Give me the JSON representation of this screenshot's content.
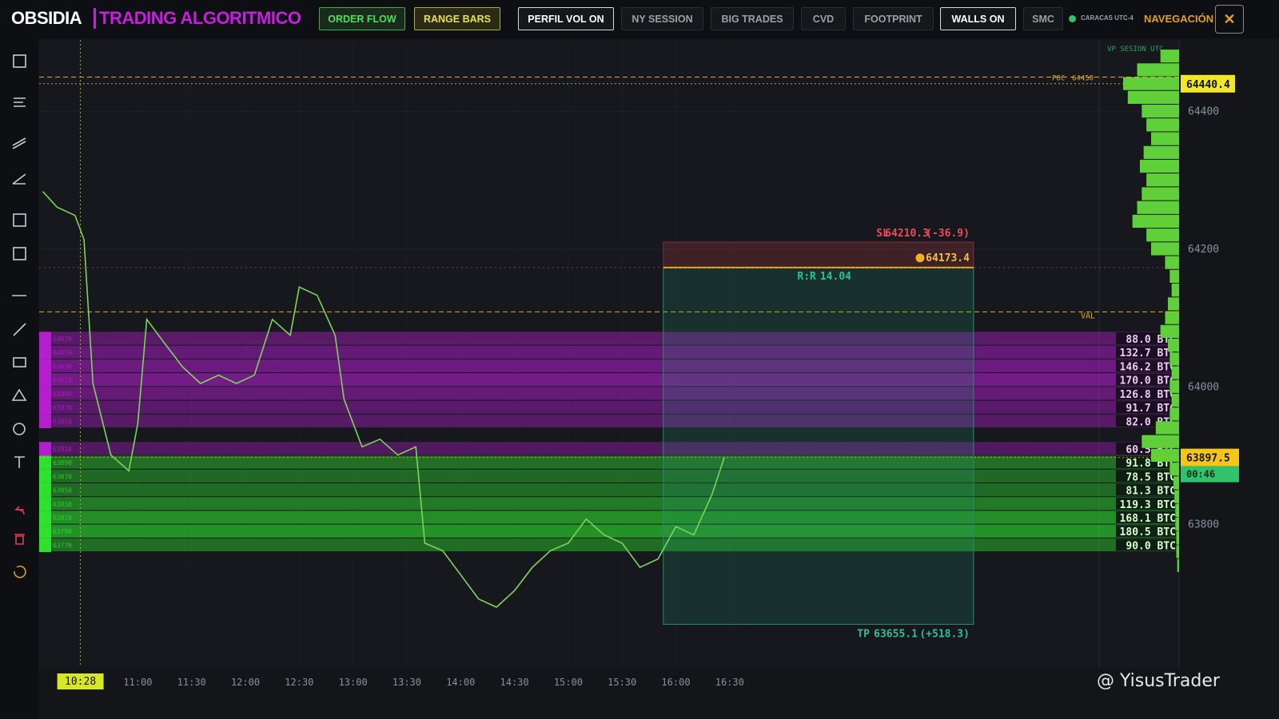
{
  "header": {
    "logo": "OBSIDIA",
    "subtitle": "TRADING ALGORITMICO",
    "buttons": [
      "ORDER FLOW",
      "RANGE BARS",
      "PERFIL VOL ON",
      "NY SESSION",
      "BIG TRADES",
      "CVD",
      "FOOTPRINT",
      "WALLS ON",
      "SMC"
    ],
    "clock": "CARACAS UTC-4",
    "nav": "NAVEGACIÓN"
  },
  "watermark": "@ YisusTrader",
  "chart_data": {
    "type": "line",
    "color": "#7fd35a",
    "x": [
      "10:07",
      "10:15",
      "10:25",
      "10:30",
      "10:35",
      "10:45",
      "10:55",
      "11:00",
      "11:05",
      "11:15",
      "11:25",
      "11:35",
      "11:45",
      "11:55",
      "12:05",
      "12:15",
      "12:25",
      "12:30",
      "12:40",
      "12:50",
      "12:55",
      "13:05",
      "13:15",
      "13:25",
      "13:35",
      "13:40",
      "13:50",
      "14:00",
      "14:10",
      "14:20",
      "14:30",
      "14:40",
      "14:50",
      "15:00",
      "15:10",
      "15:20",
      "15:30",
      "15:40",
      "15:50",
      "16:00",
      "16:10",
      "16:20",
      "16:27"
    ],
    "values": [
      64284,
      64261,
      64249,
      64214,
      64005,
      63901,
      63878,
      63947,
      64098,
      64063,
      64029,
      64005,
      64017,
      64005,
      64017,
      64098,
      64075,
      64145,
      64133,
      64075,
      63982,
      63913,
      63924,
      63901,
      63913,
      63773,
      63762,
      63727,
      63692,
      63680,
      63704,
      63738,
      63762,
      63773,
      63808,
      63785,
      63773,
      63738,
      63750,
      63797,
      63785,
      63843,
      63897.5
    ],
    "xlim": [
      "10:05",
      "19:56"
    ],
    "ylim": [
      63593,
      64504
    ],
    "xticks": [
      "11:00",
      "11:30",
      "12:00",
      "12:30",
      "13:00",
      "13:30",
      "14:00",
      "14:30",
      "15:00",
      "15:30",
      "16:00",
      "16:30"
    ],
    "yticks": [
      64400,
      64200,
      64000,
      63800
    ],
    "crosshair": {
      "time": "10:28",
      "price": 64440.4
    },
    "last_price": 63897.5,
    "countdown": "00:46",
    "levels": {
      "poc_label": "POC",
      "poc": 64450,
      "val_label": "VAL",
      "val": 64109
    },
    "trade": {
      "start": "15:53",
      "end": "18:46",
      "entry": 64173.4,
      "sl_label": "SL",
      "sl": 64210.3,
      "sl_diff": {
        "value": -36.9,
        "label": "(-36.9)"
      },
      "tp_label": "TP",
      "tp": 63655.1,
      "tp_diff": {
        "value": 518.3,
        "label": "(+518.3)"
      },
      "rr_label": "R:R",
      "rr": 14.04
    },
    "walls": [
      {
        "price": 64070,
        "size": 88.0,
        "label": "88.0 BTC",
        "side": "sell"
      },
      {
        "price": 64050,
        "size": 132.7,
        "label": "132.7 BTC",
        "side": "sell"
      },
      {
        "price": 64030,
        "size": 146.2,
        "label": "146.2 BTC",
        "side": "sell"
      },
      {
        "price": 64010,
        "size": 170.0,
        "label": "170.0 BTC",
        "side": "sell"
      },
      {
        "price": 63990,
        "size": 126.8,
        "label": "126.8 BTC",
        "side": "sell"
      },
      {
        "price": 63970,
        "size": 91.7,
        "label": "91.7 BTC",
        "side": "sell"
      },
      {
        "price": 63950,
        "size": 82.0,
        "label": "82.0 BTC",
        "side": "sell"
      },
      {
        "price": 63910,
        "size": 60.5,
        "label": "60.5 BTC",
        "side": "sell"
      },
      {
        "price": 63890,
        "size": 91.8,
        "label": "91.8 BTC",
        "side": "buy"
      },
      {
        "price": 63870,
        "size": 78.5,
        "label": "78.5 BTC",
        "side": "buy"
      },
      {
        "price": 63850,
        "size": 81.3,
        "label": "81.3 BTC",
        "side": "buy"
      },
      {
        "price": 63830,
        "size": 119.3,
        "label": "119.3 BTC",
        "side": "buy"
      },
      {
        "price": 63810,
        "size": 168.1,
        "label": "168.1 BTC",
        "side": "buy"
      },
      {
        "price": 63790,
        "size": 180.5,
        "label": "180.5 BTC",
        "side": "buy"
      },
      {
        "price": 63770,
        "size": 90.0,
        "label": "90.0 BTC",
        "side": "buy"
      }
    ],
    "wall_colors": {
      "sell": "#b41ecf",
      "buy": "#2fe02f"
    },
    "volume_profile": {
      "title": "VP SESION UTC",
      "color": "#5fcf3a",
      "prices": [
        64480,
        64460,
        64440,
        64420,
        64400,
        64380,
        64360,
        64340,
        64320,
        64300,
        64280,
        64260,
        64240,
        64220,
        64200,
        64180,
        64160,
        64140,
        64120,
        64100,
        64080,
        64060,
        64040,
        64020,
        64000,
        63980,
        63960,
        63940,
        63920,
        63900,
        63880,
        63860,
        63840,
        63820,
        63800,
        63780,
        63760,
        63740
      ],
      "values": [
        20,
        45,
        60,
        55,
        40,
        35,
        30,
        38,
        42,
        35,
        40,
        45,
        50,
        35,
        30,
        15,
        10,
        8,
        12,
        15,
        20,
        12,
        10,
        8,
        10,
        8,
        10,
        25,
        40,
        30,
        10,
        6,
        5,
        4,
        4,
        3,
        3,
        2
      ]
    }
  }
}
